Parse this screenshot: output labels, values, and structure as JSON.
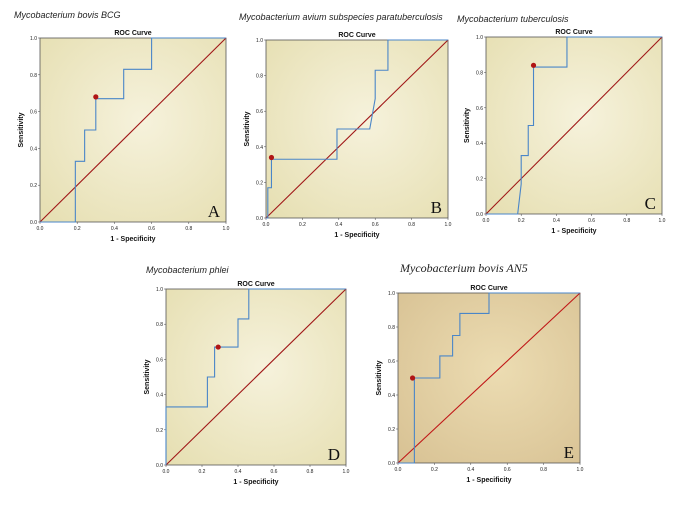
{
  "chart_data": [
    {
      "id": "A",
      "type": "line",
      "title": "Mycobacterium bovis BCG",
      "subtitle": "ROC Curve",
      "xlabel": "1 - Specificity",
      "ylabel": "Sensitivity",
      "panel_letter": "A",
      "xlim": [
        0,
        1
      ],
      "ylim": [
        0,
        1
      ],
      "xticks": [
        "0.0",
        "0.2",
        "0.4",
        "0.6",
        "0.8",
        "1.0"
      ],
      "yticks": [
        "0.0",
        "0.2",
        "0.4",
        "0.6",
        "0.8",
        "1.0"
      ],
      "curve": [
        [
          0,
          0
        ],
        [
          0.19,
          0
        ],
        [
          0.19,
          0.33
        ],
        [
          0.24,
          0.33
        ],
        [
          0.24,
          0.5
        ],
        [
          0.3,
          0.5
        ],
        [
          0.3,
          0.67
        ],
        [
          0.45,
          0.67
        ],
        [
          0.45,
          0.83
        ],
        [
          0.6,
          0.83
        ],
        [
          0.6,
          1
        ],
        [
          1,
          1
        ]
      ],
      "cutoff_point": [
        0.3,
        0.68
      ],
      "colors": {
        "curve": "#4a86c8",
        "diagonal": "#a01818",
        "point": "#b01515",
        "bg_center": "#f6f2dc",
        "bg_edge": "#e6dfb2"
      }
    },
    {
      "id": "B",
      "type": "line",
      "title": "Mycobacterium avium subspecies paratuberculosis",
      "subtitle": "ROC Curve",
      "xlabel": "1 - Specificity",
      "ylabel": "Sensitivity",
      "panel_letter": "B",
      "xlim": [
        0,
        1
      ],
      "ylim": [
        0,
        1
      ],
      "xticks": [
        "0.0",
        "0.2",
        "0.4",
        "0.6",
        "0.8",
        "1.0"
      ],
      "yticks": [
        "0.0",
        "0.2",
        "0.4",
        "0.6",
        "0.8",
        "1.0"
      ],
      "curve": [
        [
          0,
          0
        ],
        [
          0.01,
          0
        ],
        [
          0.01,
          0.17
        ],
        [
          0.03,
          0.17
        ],
        [
          0.03,
          0.33
        ],
        [
          0.39,
          0.33
        ],
        [
          0.39,
          0.5
        ],
        [
          0.57,
          0.5
        ],
        [
          0.6,
          0.67
        ],
        [
          0.6,
          0.83
        ],
        [
          0.67,
          0.83
        ],
        [
          0.67,
          1
        ],
        [
          1,
          1
        ]
      ],
      "cutoff_point": [
        0.03,
        0.34
      ],
      "colors": {
        "curve": "#4a86c8",
        "diagonal": "#a01818",
        "point": "#b01515",
        "bg_center": "#f6f2dc",
        "bg_edge": "#e6dfb2"
      }
    },
    {
      "id": "C",
      "type": "line",
      "title": "Mycobacterium tuberculosis",
      "subtitle": "ROC Curve",
      "xlabel": "1 - Specificity",
      "ylabel": "Sensitivity",
      "panel_letter": "C",
      "xlim": [
        0,
        1
      ],
      "ylim": [
        0,
        1
      ],
      "xticks": [
        "0.0",
        "0.2",
        "0.4",
        "0.6",
        "0.8",
        "1.0"
      ],
      "yticks": [
        "0.0",
        "0.2",
        "0.4",
        "0.6",
        "0.8",
        "1.0"
      ],
      "curve": [
        [
          0,
          0
        ],
        [
          0.18,
          0
        ],
        [
          0.2,
          0.17
        ],
        [
          0.2,
          0.33
        ],
        [
          0.24,
          0.33
        ],
        [
          0.24,
          0.5
        ],
        [
          0.27,
          0.5
        ],
        [
          0.27,
          0.83
        ],
        [
          0.46,
          0.83
        ],
        [
          0.46,
          1
        ],
        [
          1,
          1
        ]
      ],
      "cutoff_point": [
        0.27,
        0.84
      ],
      "colors": {
        "curve": "#4a86c8",
        "diagonal": "#a01818",
        "point": "#b01515",
        "bg_center": "#f6f2dc",
        "bg_edge": "#e6dfb2"
      }
    },
    {
      "id": "D",
      "type": "line",
      "title": "Mycobacterium phlei",
      "subtitle": "ROC Curve",
      "xlabel": "1 - Specificity",
      "ylabel": "Sensitivity",
      "panel_letter": "D",
      "xlim": [
        0,
        1
      ],
      "ylim": [
        0,
        1
      ],
      "xticks": [
        "0.0",
        "0.2",
        "0.4",
        "0.6",
        "0.8",
        "1.0"
      ],
      "yticks": [
        "0.0",
        "0.2",
        "0.4",
        "0.6",
        "0.8",
        "1.0"
      ],
      "curve": [
        [
          0,
          0
        ],
        [
          0,
          0.33
        ],
        [
          0.23,
          0.33
        ],
        [
          0.23,
          0.5
        ],
        [
          0.27,
          0.5
        ],
        [
          0.27,
          0.67
        ],
        [
          0.4,
          0.67
        ],
        [
          0.4,
          0.83
        ],
        [
          0.46,
          0.83
        ],
        [
          0.46,
          1
        ],
        [
          1,
          1
        ]
      ],
      "cutoff_point": [
        0.29,
        0.67
      ],
      "colors": {
        "curve": "#4a86c8",
        "diagonal": "#a01818",
        "point": "#b01515",
        "bg_center": "#f6f2dc",
        "bg_edge": "#e6dfb2"
      }
    },
    {
      "id": "E",
      "type": "line",
      "title": "Mycobacterium bovis AN5",
      "subtitle": "ROC Curve",
      "xlabel": "1 - Specificity",
      "ylabel": "Sensitivity",
      "panel_letter": "E",
      "xlim": [
        0,
        1
      ],
      "ylim": [
        0,
        1
      ],
      "xticks": [
        "0.0",
        "0.2",
        "0.4",
        "0.6",
        "0.8",
        "1.0"
      ],
      "yticks": [
        "0.0",
        "0.2",
        "0.4",
        "0.6",
        "0.8",
        "1.0"
      ],
      "curve": [
        [
          0,
          0
        ],
        [
          0.09,
          0
        ],
        [
          0.09,
          0.5
        ],
        [
          0.23,
          0.5
        ],
        [
          0.23,
          0.63
        ],
        [
          0.3,
          0.63
        ],
        [
          0.3,
          0.75
        ],
        [
          0.34,
          0.75
        ],
        [
          0.34,
          0.88
        ],
        [
          0.5,
          0.88
        ],
        [
          0.5,
          1
        ],
        [
          1,
          1
        ]
      ],
      "cutoff_point": [
        0.08,
        0.5
      ],
      "colors": {
        "curve": "#4a86c8",
        "diagonal": "#c01818",
        "point": "#b01515",
        "bg_center": "#ecdcb2",
        "bg_edge": "#d8c294"
      }
    }
  ]
}
